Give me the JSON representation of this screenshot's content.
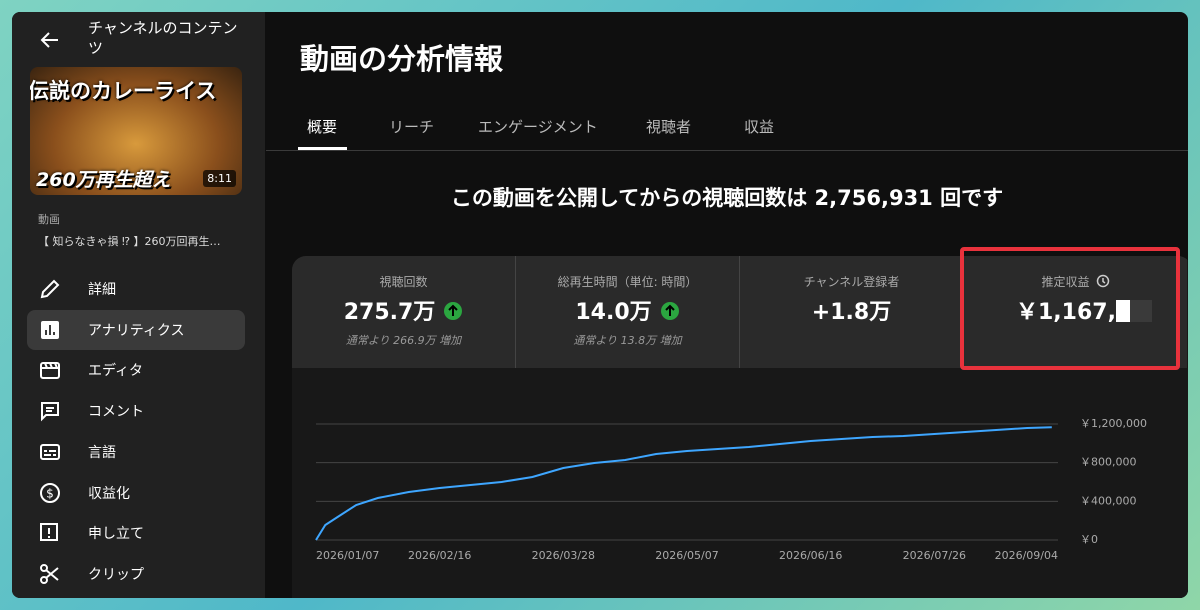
{
  "sidebar": {
    "back_label": "チャンネルのコンテンツ",
    "thumbnail": {
      "caption_top": "伝説のカレーライス",
      "caption_bottom": "260万再生超え",
      "duration": "8:11"
    },
    "video_label": "動画",
    "video_title": "【 知らなきゃ損 ⁉ 】260万回再生…",
    "nav": [
      "詳細",
      "アナリティクス",
      "エディタ",
      "コメント",
      "言語",
      "収益化",
      "申し立て",
      "クリップ"
    ],
    "active_nav": 1
  },
  "header": {
    "title": "動画の分析情報"
  },
  "tabs": {
    "items": [
      "概要",
      "リーチ",
      "エンゲージメント",
      "視聴者",
      "収益"
    ],
    "active": 0
  },
  "headline": "この動画を公開してからの視聴回数は 2,756,931 回です",
  "cards": [
    {
      "label": "視聴回数",
      "value": "275.7万",
      "note": "通常より 266.9万 増加",
      "trend": "up"
    },
    {
      "label": "総再生時間（単位: 時間）",
      "value": "14.0万",
      "note": "通常より 13.8万 増加",
      "trend": "up"
    },
    {
      "label": "チャンネル登録者",
      "value": "+1.8万"
    },
    {
      "label": "推定収益",
      "value": "￥1,167,"
    }
  ],
  "chart_data": {
    "type": "line",
    "color": "#3ea6ff",
    "x": [
      "2026/01/07",
      "2026/01/10",
      "2026/01/14",
      "2026/01/20",
      "2026/01/27",
      "2026/02/06",
      "2026/02/16",
      "2026/02/26",
      "2026/03/08",
      "2026/03/18",
      "2026/03/28",
      "2026/04/07",
      "2026/04/17",
      "2026/04/27",
      "2026/05/07",
      "2026/05/17",
      "2026/05/27",
      "2026/06/06",
      "2026/06/16",
      "2026/06/26",
      "2026/07/06",
      "2026/07/16",
      "2026/07/26",
      "2026/08/05",
      "2026/08/15",
      "2026/08/25",
      "2026/09/02"
    ],
    "values": [
      0,
      155000,
      238000,
      362000,
      434000,
      497000,
      538000,
      569000,
      600000,
      652000,
      745000,
      797000,
      828000,
      890000,
      921000,
      941000,
      962000,
      993000,
      1024000,
      1045000,
      1066000,
      1076000,
      1097000,
      1117000,
      1138000,
      1159000,
      1167000
    ],
    "xlim": [
      "2026/01/07",
      "2026/09/04"
    ],
    "xticks": [
      "2026/01/07",
      "2026/02/16",
      "2026/03/28",
      "2026/05/07",
      "2026/06/16",
      "2026/07/26",
      "2026/09/04"
    ],
    "ylim": [
      0,
      1200000
    ],
    "yticks": [
      {
        "value": 0,
        "label": "￥0"
      },
      {
        "value": 400000,
        "label": "￥400,000"
      },
      {
        "value": 800000,
        "label": "￥800,000"
      },
      {
        "value": 1200000,
        "label": "￥1,200,000"
      }
    ],
    "grid": true
  }
}
